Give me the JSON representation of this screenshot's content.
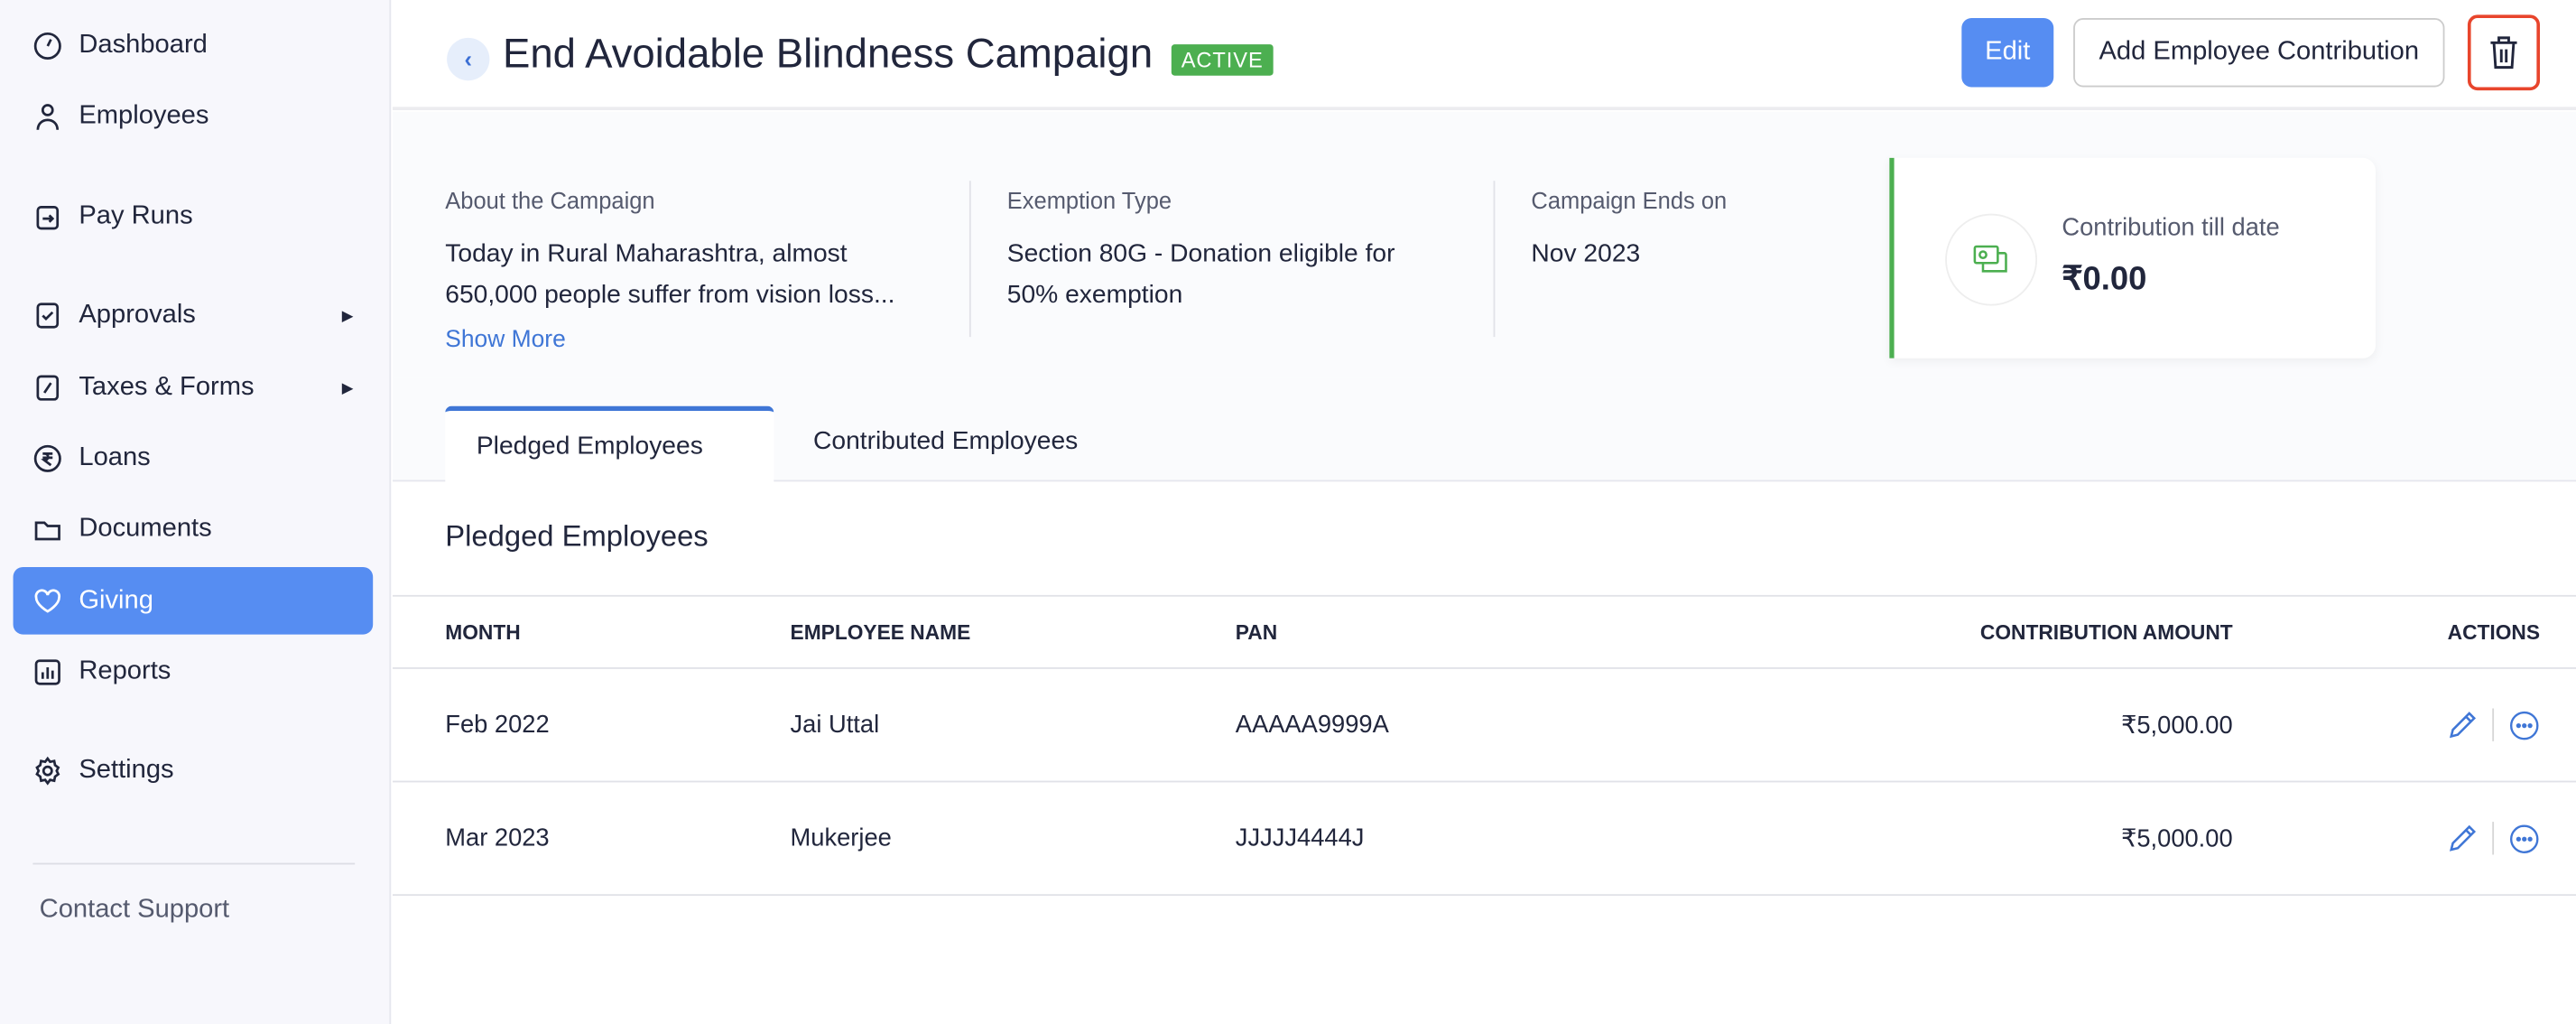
{
  "sidebar": {
    "items": [
      {
        "label": "Dashboard",
        "icon": "dashboard-icon"
      },
      {
        "label": "Employees",
        "icon": "user-icon"
      },
      {
        "label": "Pay Runs",
        "icon": "pay-runs-icon"
      },
      {
        "label": "Approvals",
        "icon": "approvals-icon",
        "submenu": true
      },
      {
        "label": "Taxes & Forms",
        "icon": "tax-icon",
        "submenu": true
      },
      {
        "label": "Loans",
        "icon": "rupee-icon"
      },
      {
        "label": "Documents",
        "icon": "folder-icon"
      },
      {
        "label": "Giving",
        "icon": "heart-icon",
        "active": true
      },
      {
        "label": "Reports",
        "icon": "reports-icon"
      },
      {
        "label": "Settings",
        "icon": "gear-icon"
      }
    ],
    "contact_support": "Contact Support"
  },
  "header": {
    "title": "End Avoidable Blindness Campaign",
    "status": "ACTIVE",
    "edit_label": "Edit",
    "add_label": "Add Employee Contribution"
  },
  "info": {
    "about_label": "About the Campaign",
    "about_line1": "Today in Rural Maharashtra, almost",
    "about_line2": "650,000 people suffer from vision loss...",
    "show_more": "Show More",
    "exemption_label": "Exemption Type",
    "exemption_line1": "Section 80G - Donation eligible for",
    "exemption_line2": "50% exemption",
    "ends_label": "Campaign Ends on",
    "ends_value": "Nov 2023",
    "contribution_label": "Contribution till date",
    "contribution_value": "₹0.00"
  },
  "tabs": [
    {
      "label": "Pledged Employees",
      "active": true
    },
    {
      "label": "Contributed Employees"
    }
  ],
  "section_title": "Pledged Employees",
  "table": {
    "headers": [
      "MONTH",
      "EMPLOYEE NAME",
      "PAN",
      "CONTRIBUTION AMOUNT",
      "ACTIONS"
    ],
    "rows": [
      {
        "month": "Feb 2022",
        "name": "Jai Uttal",
        "pan": "AAAAA9999A",
        "amount": "₹5,000.00"
      },
      {
        "month": "Mar 2023",
        "name": "Mukerjee",
        "pan": "JJJJJ4444J",
        "amount": "₹5,000.00"
      }
    ]
  },
  "colors": {
    "accent": "#568df2",
    "active_badge": "#4caf50",
    "highlight": "#e8452c"
  }
}
